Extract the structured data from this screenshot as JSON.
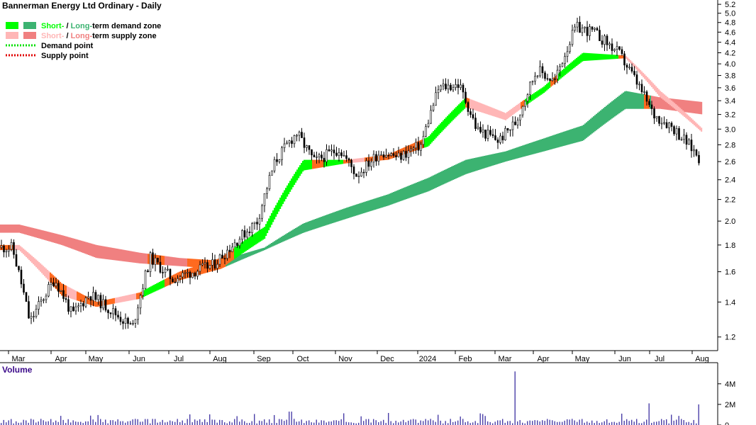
{
  "chart_data": [
    {
      "type": "candlestick",
      "title": "Bannerman Energy Ltd Ordinary - Daily",
      "legend": [
        {
          "prefix": "Short-",
          "sep": " / ",
          "long": "Long-",
          "suffix": "term demand zone",
          "colors": [
            "#00ff00",
            "#3cb371"
          ]
        },
        {
          "prefix": "Short-",
          "sep": " / ",
          "long": "Long-",
          "suffix": "term supply zone",
          "colors": [
            "#ffb6b6",
            "#f08080"
          ]
        },
        {
          "label": "Demand point",
          "color": "#00e000"
        },
        {
          "label": "Supply point",
          "color": "#e00000"
        }
      ],
      "x_ticks": [
        "Mar",
        "Apr",
        "May",
        "Jun",
        "Jul",
        "Aug",
        "Sep",
        "Oct",
        "Nov",
        "Dec",
        "2024",
        "Feb",
        "Mar",
        "Apr",
        "May",
        "Jun",
        "Jul",
        "Aug"
      ],
      "y_ticks": [
        1.2,
        1.4,
        1.6,
        1.8,
        2.0,
        2.2,
        2.4,
        2.6,
        2.8,
        3.0,
        3.2,
        3.4,
        3.6,
        3.8,
        4.0,
        4.2,
        4.4,
        4.6,
        4.8,
        5.0,
        5.2
      ],
      "y_scale": "log",
      "ylim": [
        1.13,
        5.3
      ],
      "price_path": [
        [
          "Mar",
          1.78
        ],
        [
          "Mar",
          1.28
        ],
        [
          "Apr",
          1.55
        ],
        [
          "Apr",
          1.32
        ],
        [
          "May",
          1.45
        ],
        [
          "Jun",
          1.25
        ],
        [
          "Jun",
          1.7
        ],
        [
          "Jul",
          1.55
        ],
        [
          "Aug",
          1.65
        ],
        [
          "Sep",
          2.0
        ],
        [
          "Sep",
          2.6
        ],
        [
          "Oct",
          2.95
        ],
        [
          "Oct",
          2.6
        ],
        [
          "Nov",
          2.75
        ],
        [
          "Nov",
          2.45
        ],
        [
          "Dec",
          2.72
        ],
        [
          "Dec",
          2.65
        ],
        [
          "2024",
          2.8
        ],
        [
          "2024",
          3.6
        ],
        [
          "Feb",
          3.65
        ],
        [
          "Feb",
          3.0
        ],
        [
          "Mar",
          2.85
        ],
        [
          "Mar",
          3.1
        ],
        [
          "Apr",
          3.9
        ],
        [
          "Apr",
          3.7
        ],
        [
          "May",
          4.7
        ],
        [
          "May",
          4.6
        ],
        [
          "Jun",
          4.2
        ],
        [
          "Jun",
          3.7
        ],
        [
          "Jul",
          3.2
        ],
        [
          "Jul",
          3.05
        ],
        [
          "Aug",
          2.7
        ],
        [
          "Aug",
          2.35
        ]
      ],
      "short_zone": [
        [
          "Mar",
          1.8,
          1.76
        ],
        [
          "Apr",
          1.52,
          1.44
        ],
        [
          "May",
          1.4,
          1.37
        ],
        [
          "Jun",
          1.46,
          1.42
        ],
        [
          "Jul",
          1.6,
          1.54
        ],
        [
          "Aug",
          1.7,
          1.62
        ],
        [
          "Sep",
          1.95,
          1.85
        ],
        [
          "Oct",
          2.62,
          2.5
        ],
        [
          "Nov",
          2.62,
          2.58
        ],
        [
          "Dec",
          2.68,
          2.62
        ],
        [
          "2024",
          2.9,
          2.78
        ],
        [
          "Feb",
          3.45,
          3.3
        ],
        [
          "Mar",
          3.22,
          3.12
        ],
        [
          "Apr",
          3.62,
          3.52
        ],
        [
          "May",
          4.2,
          4.05
        ],
        [
          "Jun",
          4.15,
          4.1
        ],
        [
          "Jul",
          3.55,
          3.45
        ],
        [
          "Aug",
          3.0,
          2.95
        ]
      ],
      "long_zone": [
        [
          "Mar",
          1.97,
          1.9
        ],
        [
          "Apr",
          1.88,
          1.8
        ],
        [
          "May",
          1.8,
          1.7
        ],
        [
          "Jun",
          1.74,
          1.66
        ],
        [
          "Jul",
          1.7,
          1.64
        ],
        [
          "Aug",
          1.68,
          1.62
        ],
        [
          "Sep",
          1.78,
          1.76
        ],
        [
          "Oct",
          1.98,
          1.9
        ],
        [
          "Nov",
          2.12,
          2.02
        ],
        [
          "Dec",
          2.25,
          2.14
        ],
        [
          "2024",
          2.42,
          2.28
        ],
        [
          "Feb",
          2.62,
          2.46
        ],
        [
          "Mar",
          2.72,
          2.6
        ],
        [
          "Apr",
          2.88,
          2.72
        ],
        [
          "May",
          3.05,
          2.85
        ],
        [
          "Jun",
          3.55,
          3.28
        ],
        [
          "Jul",
          3.45,
          3.28
        ],
        [
          "Aug",
          3.38,
          3.2
        ]
      ],
      "volume": {
        "label": "Volume",
        "y_ticks": [
          "0",
          "2M",
          "4M"
        ],
        "ylim": [
          0,
          5.5
        ],
        "spikes": [
          [
            "Mar",
            5.2
          ],
          [
            "Jun",
            2.1
          ],
          [
            "Aug",
            2.0
          ],
          [
            "Oct",
            1.3
          ]
        ]
      }
    }
  ]
}
